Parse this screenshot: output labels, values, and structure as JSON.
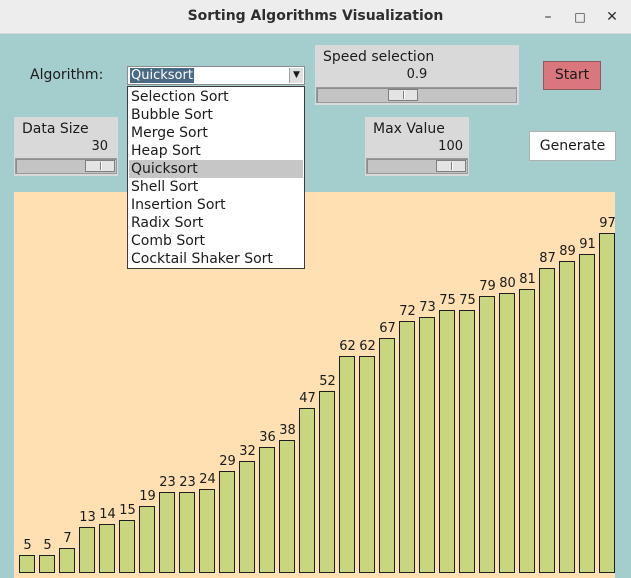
{
  "window": {
    "title": "Sorting Algorithms Visualization"
  },
  "controls": {
    "algorithm_label": "Algorithm:",
    "algorithm_selected": "Quicksort",
    "algorithm_options": [
      "Selection Sort",
      "Bubble Sort",
      "Merge Sort",
      "Heap Sort",
      "Quicksort",
      "Shell Sort",
      "Insertion Sort",
      "Radix Sort",
      "Comb Sort",
      "Cocktail Shaker Sort"
    ],
    "speed_title": "Speed selection",
    "speed_value": "0.9",
    "data_size_title": "Data Size",
    "data_size_value": "30",
    "max_value_title": "Max Value",
    "max_value_value": "100",
    "start_label": "Start",
    "generate_label": "Generate"
  },
  "colors": {
    "start_button": "#d9777c",
    "bar_fill": "#c8d680",
    "canvas_bg": "#ffe0b2",
    "window_bg": "#a4cdcd"
  },
  "chart_data": {
    "type": "bar",
    "values": [
      5,
      5,
      7,
      13,
      14,
      15,
      19,
      23,
      23,
      24,
      29,
      32,
      36,
      38,
      47,
      52,
      62,
      62,
      67,
      72,
      73,
      75,
      75,
      79,
      80,
      81,
      87,
      89,
      91,
      97
    ],
    "ylim": [
      0,
      100
    ]
  }
}
